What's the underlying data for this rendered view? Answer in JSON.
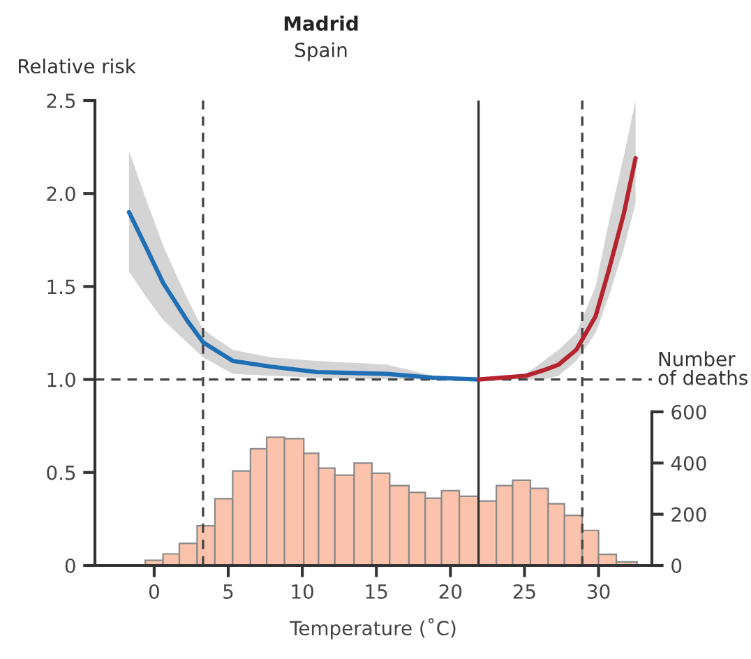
{
  "chart_data": {
    "type": "line",
    "title": "Madrid",
    "subtitle": "Spain",
    "ylabel": "Relative risk",
    "xlabel": "Temperature (˚C)",
    "y2label": "Number\nof deaths",
    "xlim": [
      -4,
      33.6
    ],
    "xticks": [
      0,
      5,
      10,
      15,
      20,
      25,
      30
    ],
    "ylim": [
      0,
      2.5
    ],
    "yticks": [
      0,
      0.5,
      {
        "value": 1,
        "label": "1.0"
      },
      1.5,
      {
        "value": 2,
        "label": "2.0"
      },
      2.5
    ],
    "y2lim": [
      0,
      1816
    ],
    "y2ticks": [
      0,
      200,
      400,
      600
    ],
    "grid": false,
    "legend": false,
    "line_style": "solid",
    "marker": "none",
    "series": [
      {
        "type": "histogram",
        "axis": "y2",
        "color": "#fbc3ab",
        "bins": [
          -0.6,
          0.6,
          1.7,
          2.9,
          4.1,
          5.3,
          6.5,
          7.6,
          8.8,
          10.1,
          11.1,
          12.2,
          13.5,
          14.7,
          15.9,
          17.2,
          18.3,
          19.4,
          20.6,
          21.9,
          23.1,
          24.2,
          25.4,
          26.6,
          27.7,
          28.9,
          30.0,
          31.2,
          32.6
        ],
        "values": [
          20,
          45,
          86,
          155,
          261,
          369,
          456,
          501,
          495,
          438,
          380,
          353,
          400,
          360,
          312,
          285,
          263,
          292,
          270,
          252,
          312,
          333,
          301,
          241,
          195,
          137,
          43,
          14
        ]
      },
      {
        "color": "#1f6fb5",
        "x": [
          -1.7,
          -0.6,
          0.6,
          2.2,
          3.3,
          5.3,
          7.8,
          11.0,
          15.7,
          18.8,
          21.9
        ],
        "values": [
          1.9,
          1.72,
          1.52,
          1.32,
          1.2,
          1.1,
          1.07,
          1.04,
          1.03,
          1.01,
          1.0
        ],
        "lower": [
          1.58,
          1.45,
          1.32,
          1.2,
          1.12,
          1.03,
          1.02,
          1.01,
          1.0,
          1.0,
          1.0
        ],
        "upper": [
          2.23,
          1.98,
          1.72,
          1.44,
          1.27,
          1.16,
          1.12,
          1.1,
          1.08,
          1.02,
          1.0
        ]
      },
      {
        "color": "#b5232f",
        "x": [
          21.9,
          25.1,
          26.3,
          27.3,
          28.5,
          29.8,
          30.7,
          31.7,
          32.5
        ],
        "values": [
          1.0,
          1.02,
          1.05,
          1.08,
          1.16,
          1.34,
          1.59,
          1.89,
          2.19
        ],
        "lower": [
          1.0,
          1.0,
          1.0,
          1.02,
          1.1,
          1.25,
          1.45,
          1.7,
          1.95
        ],
        "upper": [
          1.0,
          1.03,
          1.1,
          1.16,
          1.25,
          1.5,
          1.85,
          2.2,
          2.5
        ]
      }
    ],
    "ref_lines": [
      {
        "axis": "y",
        "value": 1.0,
        "color": "#444444",
        "line_style": "dashed"
      },
      {
        "axis": "x",
        "value": 3.3,
        "color": "#444444",
        "line_style": "dashed"
      },
      {
        "axis": "x",
        "value": 21.9,
        "color": "#333333",
        "line_style": "solid"
      },
      {
        "axis": "x",
        "value": 28.9,
        "color": "#444444",
        "line_style": "dashed"
      }
    ]
  }
}
